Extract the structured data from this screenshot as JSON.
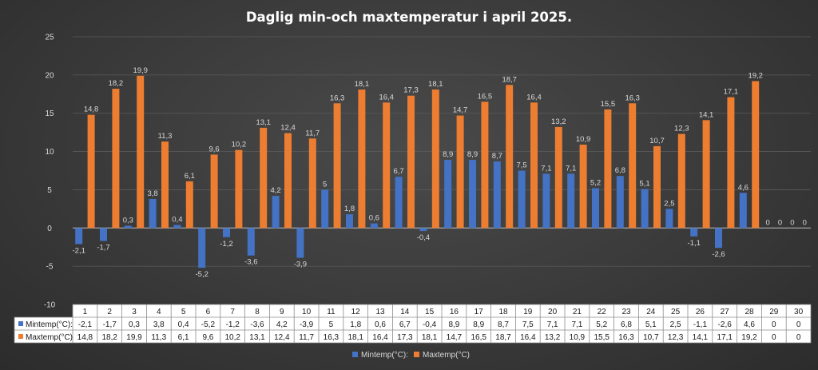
{
  "chart_data": {
    "type": "bar",
    "title": "Daglig min-och maxtemperatur i april 2025.",
    "categories": [
      "1",
      "2",
      "3",
      "4",
      "5",
      "6",
      "7",
      "8",
      "9",
      "10",
      "11",
      "12",
      "13",
      "14",
      "15",
      "16",
      "17",
      "18",
      "19",
      "20",
      "21",
      "22",
      "23",
      "24",
      "25",
      "26",
      "27",
      "28",
      "29",
      "30"
    ],
    "series": [
      {
        "name": "Mintemp(°C):",
        "color": "#4472c4",
        "values": [
          -2.1,
          -1.7,
          0.3,
          3.8,
          0.4,
          -5.2,
          -1.2,
          -3.6,
          4.2,
          -3.9,
          5,
          1.8,
          0.6,
          6.7,
          -0.4,
          8.9,
          8.9,
          8.7,
          7.5,
          7.1,
          7.1,
          5.2,
          6.8,
          5.1,
          2.5,
          -1.1,
          -2.6,
          4.6,
          0,
          0
        ],
        "labels": [
          "-2,1",
          "-1,7",
          "0,3",
          "3,8",
          "0,4",
          "-5,2",
          "-1,2",
          "-3,6",
          "4,2",
          "-3,9",
          "5",
          "1,8",
          "0,6",
          "6,7",
          "-0,4",
          "8,9",
          "8,9",
          "8,7",
          "7,5",
          "7,1",
          "7,1",
          "5,2",
          "6,8",
          "5,1",
          "2,5",
          "-1,1",
          "-2,6",
          "4,6",
          "0",
          "0"
        ]
      },
      {
        "name": "Maxtemp(°C)",
        "color": "#ed7d31",
        "values": [
          14.8,
          18.2,
          19.9,
          11.3,
          6.1,
          9.6,
          10.2,
          13.1,
          12.4,
          11.7,
          16.3,
          18.1,
          16.4,
          17.3,
          18.1,
          14.7,
          16.5,
          18.7,
          16.4,
          13.2,
          10.9,
          15.5,
          16.3,
          10.7,
          12.3,
          14.1,
          17.1,
          19.2,
          0,
          0
        ],
        "labels": [
          "14,8",
          "18,2",
          "19,9",
          "11,3",
          "6,1",
          "9,6",
          "10,2",
          "13,1",
          "12,4",
          "11,7",
          "16,3",
          "18,1",
          "16,4",
          "17,3",
          "18,1",
          "14,7",
          "16,5",
          "18,7",
          "16,4",
          "13,2",
          "10,9",
          "15,5",
          "16,3",
          "10,7",
          "12,3",
          "14,1",
          "17,1",
          "19,2",
          "0",
          "0"
        ]
      }
    ],
    "ylim": [
      -10,
      25
    ],
    "yticks": [
      "-10",
      "-5",
      "0",
      "5",
      "10",
      "15",
      "20",
      "25"
    ],
    "grid": true,
    "data_table": true,
    "legend": "bottom"
  }
}
